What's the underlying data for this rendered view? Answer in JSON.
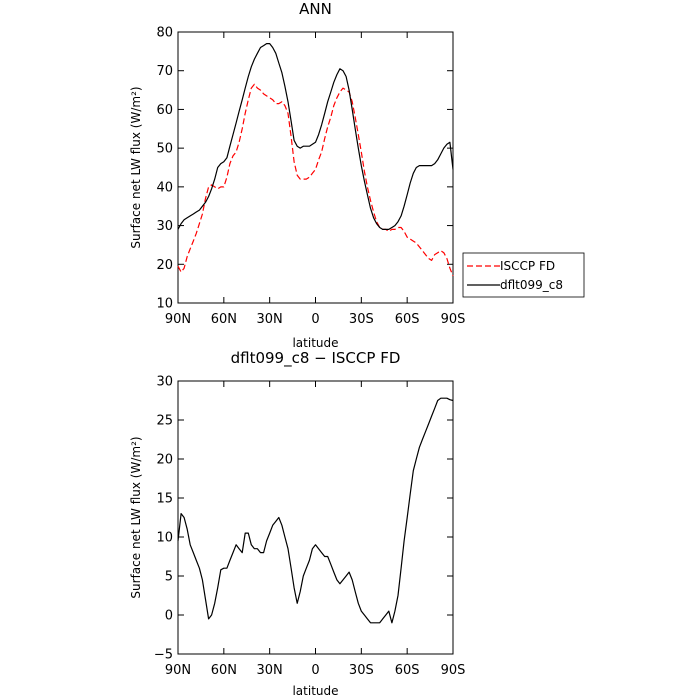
{
  "chart_data": [
    {
      "type": "line",
      "title": "ANN",
      "xlabel": "latitude",
      "ylabel": "Surface net LW flux (W/m²)",
      "ylim": [
        10,
        80
      ],
      "yticks": [
        10,
        20,
        30,
        40,
        50,
        60,
        70,
        80
      ],
      "xlim": [
        90,
        -90
      ],
      "xticks": [
        90,
        60,
        30,
        0,
        -30,
        -60,
        -90
      ],
      "xticklabels": [
        "90N",
        "60N",
        "30N",
        "0",
        "30S",
        "60S",
        "90S"
      ],
      "legend": "outside-right",
      "series": [
        {
          "name": "ISCCP FD",
          "color": "#ff0000",
          "dash": true,
          "x": [
            90,
            88,
            86,
            84,
            82,
            80,
            78,
            76,
            74,
            72,
            70,
            68,
            66,
            64,
            62,
            60,
            58,
            56,
            54,
            52,
            50,
            48,
            46,
            44,
            42,
            40,
            38,
            36,
            34,
            32,
            30,
            28,
            26,
            24,
            22,
            20,
            18,
            16,
            14,
            12,
            10,
            8,
            6,
            4,
            2,
            0,
            -2,
            -4,
            -6,
            -8,
            -10,
            -12,
            -14,
            -16,
            -18,
            -20,
            -22,
            -24,
            -26,
            -28,
            -30,
            -32,
            -34,
            -36,
            -38,
            -40,
            -42,
            -44,
            -46,
            -48,
            -50,
            -52,
            -54,
            -56,
            -58,
            -60,
            -62,
            -64,
            -66,
            -68,
            -70,
            -72,
            -74,
            -76,
            -78,
            -80,
            -82,
            -84,
            -86,
            -88,
            -90
          ],
          "values": [
            19.5,
            18.0,
            19.0,
            22.0,
            24.0,
            26.0,
            28.0,
            30.5,
            33.0,
            37.0,
            40.0,
            40.5,
            40.0,
            39.5,
            40.0,
            40.0,
            42.5,
            46.0,
            48.0,
            49.0,
            51.5,
            55.0,
            59.0,
            62.5,
            65.5,
            66.5,
            65.5,
            65.0,
            64.0,
            63.5,
            63.0,
            62.5,
            61.5,
            61.5,
            62.0,
            61.0,
            59.0,
            53.0,
            46.5,
            43.0,
            42.0,
            42.0,
            42.0,
            42.5,
            43.5,
            44.5,
            47.0,
            49.0,
            52.5,
            55.5,
            58.0,
            61.0,
            63.0,
            64.5,
            65.5,
            65.0,
            64.5,
            62.0,
            58.0,
            53.5,
            49.0,
            44.0,
            40.0,
            36.5,
            33.5,
            31.0,
            29.5,
            29.0,
            29.0,
            28.5,
            29.0,
            29.0,
            29.5,
            29.5,
            28.5,
            27.0,
            26.5,
            26.0,
            25.5,
            24.5,
            23.5,
            22.5,
            21.5,
            21.0,
            22.5,
            23.0,
            23.5,
            23.0,
            21.5,
            19.0,
            17.0
          ]
        },
        {
          "name": "dflt099_c8",
          "color": "#000000",
          "dash": false,
          "x": [
            90,
            88,
            86,
            84,
            82,
            80,
            78,
            76,
            74,
            72,
            70,
            68,
            66,
            64,
            62,
            60,
            58,
            56,
            54,
            52,
            50,
            48,
            46,
            44,
            42,
            40,
            38,
            36,
            34,
            32,
            30,
            28,
            26,
            24,
            22,
            20,
            18,
            16,
            14,
            12,
            10,
            8,
            6,
            4,
            2,
            0,
            -2,
            -4,
            -6,
            -8,
            -10,
            -12,
            -14,
            -16,
            -18,
            -20,
            -22,
            -24,
            -26,
            -28,
            -30,
            -32,
            -34,
            -36,
            -38,
            -40,
            -42,
            -44,
            -46,
            -48,
            -50,
            -52,
            -54,
            -56,
            -58,
            -60,
            -62,
            -64,
            -66,
            -68,
            -70,
            -72,
            -74,
            -76,
            -78,
            -80,
            -82,
            -84,
            -86,
            -88,
            -90
          ],
          "values": [
            29.0,
            30.5,
            31.5,
            32.0,
            32.5,
            33.0,
            33.5,
            34.0,
            35.0,
            36.0,
            37.5,
            39.5,
            42.0,
            45.0,
            46.0,
            46.5,
            47.5,
            50.5,
            53.5,
            56.5,
            59.5,
            62.5,
            65.5,
            68.5,
            71.0,
            73.0,
            74.5,
            76.0,
            76.5,
            77.0,
            77.0,
            76.0,
            74.5,
            72.0,
            69.5,
            66.0,
            62.0,
            57.0,
            52.0,
            50.5,
            50.0,
            50.5,
            50.5,
            50.5,
            51.0,
            51.5,
            53.5,
            56.0,
            59.0,
            62.0,
            64.5,
            67.0,
            69.0,
            70.5,
            70.0,
            68.5,
            65.0,
            60.0,
            55.0,
            50.0,
            45.5,
            41.5,
            38.0,
            34.5,
            32.0,
            30.5,
            29.5,
            29.0,
            29.0,
            29.0,
            29.5,
            30.0,
            31.0,
            32.5,
            35.0,
            38.0,
            41.0,
            43.5,
            45.0,
            45.5,
            45.5,
            45.5,
            45.5,
            45.5,
            46.0,
            47.0,
            48.5,
            50.0,
            51.0,
            51.5,
            44.5
          ]
        }
      ]
    },
    {
      "type": "line",
      "title": "dflt099_c8 − ISCCP FD",
      "xlabel": "latitude",
      "ylabel": "Surface net LW flux (W/m²)",
      "ylim": [
        -5,
        30
      ],
      "yticks": [
        -5,
        0,
        5,
        10,
        15,
        20,
        25,
        30
      ],
      "xlim": [
        90,
        -90
      ],
      "xticks": [
        90,
        60,
        30,
        0,
        -30,
        -60,
        -90
      ],
      "xticklabels": [
        "90N",
        "60N",
        "30N",
        "0",
        "30S",
        "60S",
        "90S"
      ],
      "series": [
        {
          "color": "#000000",
          "dash": false,
          "x": [
            90,
            88,
            86,
            84,
            82,
            80,
            78,
            76,
            74,
            72,
            70,
            68,
            66,
            64,
            62,
            60,
            58,
            56,
            54,
            52,
            50,
            48,
            46,
            44,
            42,
            40,
            38,
            36,
            34,
            32,
            30,
            28,
            26,
            24,
            22,
            20,
            18,
            16,
            14,
            12,
            10,
            8,
            6,
            4,
            2,
            0,
            -2,
            -4,
            -6,
            -8,
            -10,
            -12,
            -14,
            -16,
            -18,
            -20,
            -22,
            -24,
            -26,
            -28,
            -30,
            -32,
            -34,
            -36,
            -38,
            -40,
            -42,
            -44,
            -46,
            -48,
            -50,
            -52,
            -54,
            -56,
            -58,
            -60,
            -62,
            -64,
            -66,
            -68,
            -70,
            -72,
            -74,
            -76,
            -78,
            -80,
            -82,
            -84,
            -86,
            -88,
            -90
          ],
          "values": [
            9.5,
            13.0,
            12.5,
            11.0,
            9.0,
            8.0,
            7.0,
            6.0,
            4.5,
            2.0,
            -0.5,
            0.0,
            1.5,
            3.5,
            5.8,
            6.0,
            6.0,
            7.0,
            8.0,
            9.0,
            8.5,
            8.0,
            10.5,
            10.5,
            9.0,
            8.5,
            8.5,
            8.0,
            8.0,
            9.5,
            10.5,
            11.5,
            12.0,
            12.5,
            11.5,
            10.0,
            8.5,
            6.0,
            3.5,
            1.5,
            3.0,
            5.0,
            6.0,
            7.0,
            8.5,
            9.0,
            8.5,
            8.0,
            7.5,
            7.5,
            6.5,
            5.5,
            4.5,
            4.0,
            4.5,
            5.0,
            5.5,
            4.5,
            3.0,
            1.5,
            0.5,
            0.0,
            -0.5,
            -1.0,
            -1.0,
            -1.0,
            -1.0,
            -0.5,
            0.0,
            0.5,
            -1.0,
            0.5,
            2.5,
            6.0,
            9.5,
            12.5,
            15.5,
            18.5,
            20.0,
            21.5,
            22.5,
            23.5,
            24.5,
            25.5,
            26.5,
            27.5,
            27.8,
            27.8,
            27.8,
            27.6,
            27.5
          ]
        }
      ]
    }
  ]
}
